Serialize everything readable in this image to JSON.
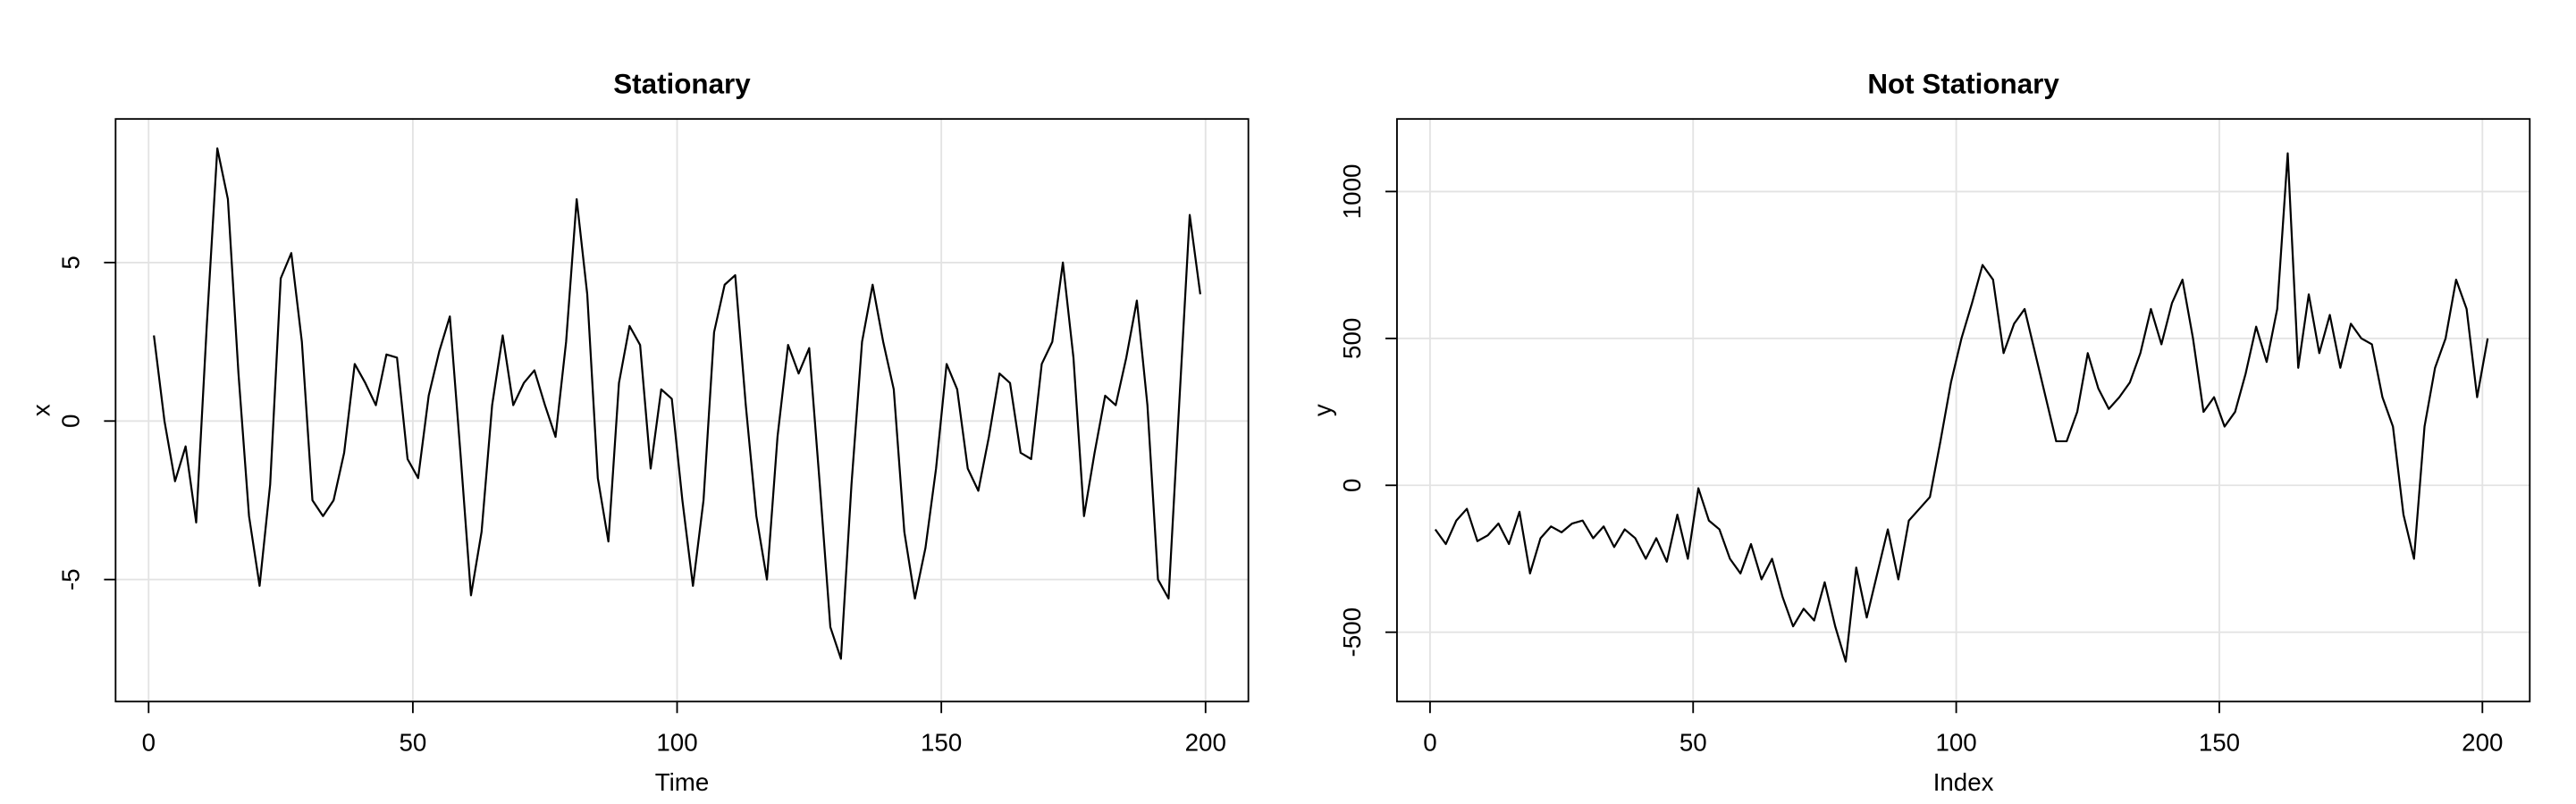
{
  "chart_data": [
    {
      "type": "line",
      "title": "Stationary",
      "x_label": "Time",
      "y_label": "x",
      "color": "#000000",
      "grid": true,
      "xlim": [
        -6.25,
        208.1
      ],
      "ylim": [
        -8.85,
        9.53
      ],
      "xticks": [
        0,
        50,
        100,
        150,
        200
      ],
      "yticks": [
        -5,
        0,
        5
      ],
      "x": [
        1,
        3,
        5,
        7,
        9,
        11,
        13,
        15,
        17,
        19,
        21,
        23,
        25,
        27,
        29,
        31,
        33,
        35,
        37,
        39,
        41,
        43,
        45,
        47,
        49,
        51,
        53,
        55,
        57,
        59,
        61,
        63,
        65,
        67,
        69,
        71,
        73,
        75,
        77,
        79,
        81,
        83,
        85,
        87,
        89,
        91,
        93,
        95,
        97,
        99,
        101,
        103,
        105,
        107,
        109,
        111,
        113,
        115,
        117,
        119,
        121,
        123,
        125,
        127,
        129,
        131,
        133,
        135,
        137,
        139,
        141,
        143,
        145,
        147,
        149,
        151,
        153,
        155,
        157,
        159,
        161,
        163,
        165,
        167,
        169,
        171,
        173,
        175,
        177,
        179,
        181,
        183,
        185,
        187,
        189,
        191,
        193,
        195,
        197,
        199
      ],
      "values": [
        2.7,
        0,
        -1.9,
        -0.8,
        -3.2,
        3.0,
        8.6,
        7.0,
        1.5,
        -3.0,
        -5.2,
        -2.0,
        4.5,
        5.3,
        2.5,
        -2.5,
        -3.0,
        -2.5,
        -1.0,
        1.8,
        1.2,
        0.5,
        2.1,
        2.0,
        -1.2,
        -1.8,
        0.8,
        2.2,
        3.3,
        -1.0,
        -5.5,
        -3.5,
        0.5,
        2.7,
        0.5,
        1.2,
        1.6,
        0.5,
        -0.5,
        2.5,
        7.0,
        4.0,
        -1.8,
        -3.8,
        1.2,
        3.0,
        2.4,
        -1.5,
        1.0,
        0.7,
        -2.5,
        -5.2,
        -2.5,
        2.8,
        4.3,
        4.6,
        0.5,
        -3.0,
        -5.0,
        -0.5,
        2.4,
        1.5,
        2.3,
        -2.0,
        -6.5,
        -7.5,
        -2.0,
        2.5,
        4.3,
        2.5,
        1.0,
        -3.5,
        -5.6,
        -4.0,
        -1.5,
        1.8,
        1.0,
        -1.5,
        -2.2,
        -0.5,
        1.5,
        1.2,
        -1.0,
        -1.2,
        1.8,
        2.5,
        5.0,
        2.0,
        -3.0,
        -1.0,
        0.8,
        0.5,
        2.0,
        3.8,
        0.5,
        -5.0,
        -5.6,
        0.5,
        6.5,
        4.0
      ]
    },
    {
      "type": "line",
      "title": "Not Stationary",
      "x_label": "Index",
      "y_label": "y",
      "color": "#000000",
      "grid": true,
      "xlim": [
        -6.28,
        209
      ],
      "ylim": [
        -736,
        1247
      ],
      "xticks": [
        0,
        50,
        100,
        150,
        200
      ],
      "yticks": [
        -500,
        0,
        500,
        1000
      ],
      "x": [
        1,
        3,
        5,
        7,
        9,
        11,
        13,
        15,
        17,
        19,
        21,
        23,
        25,
        27,
        29,
        31,
        33,
        35,
        37,
        39,
        41,
        43,
        45,
        47,
        49,
        51,
        53,
        55,
        57,
        59,
        61,
        63,
        65,
        67,
        69,
        71,
        73,
        75,
        77,
        79,
        81,
        83,
        85,
        87,
        89,
        91,
        93,
        95,
        97,
        99,
        101,
        103,
        105,
        107,
        109,
        111,
        113,
        115,
        117,
        119,
        121,
        123,
        125,
        127,
        129,
        131,
        133,
        135,
        137,
        139,
        141,
        143,
        145,
        147,
        149,
        151,
        153,
        155,
        157,
        159,
        161,
        163,
        165,
        167,
        169,
        171,
        173,
        175,
        177,
        179,
        181,
        183,
        185,
        187,
        189,
        191,
        193,
        195,
        197,
        199,
        201
      ],
      "values": [
        -150,
        -200,
        -120,
        -80,
        -190,
        -170,
        -130,
        -200,
        -90,
        -300,
        -180,
        -140,
        -160,
        -130,
        -120,
        -180,
        -140,
        -210,
        -150,
        -180,
        -250,
        -180,
        -260,
        -100,
        -250,
        -10,
        -120,
        -150,
        -250,
        -300,
        -200,
        -320,
        -250,
        -380,
        -480,
        -420,
        -460,
        -330,
        -480,
        -600,
        -280,
        -450,
        -300,
        -150,
        -320,
        -120,
        -80,
        -40,
        150,
        350,
        500,
        620,
        750,
        700,
        450,
        550,
        600,
        450,
        300,
        150,
        150,
        250,
        450,
        330,
        260,
        300,
        350,
        450,
        600,
        480,
        620,
        700,
        500,
        250,
        300,
        200,
        250,
        380,
        540,
        420,
        600,
        1130,
        400,
        650,
        450,
        580,
        400,
        550,
        500,
        480,
        300,
        200,
        -100,
        -250,
        200,
        400,
        500,
        700,
        600,
        300,
        500
      ]
    }
  ]
}
